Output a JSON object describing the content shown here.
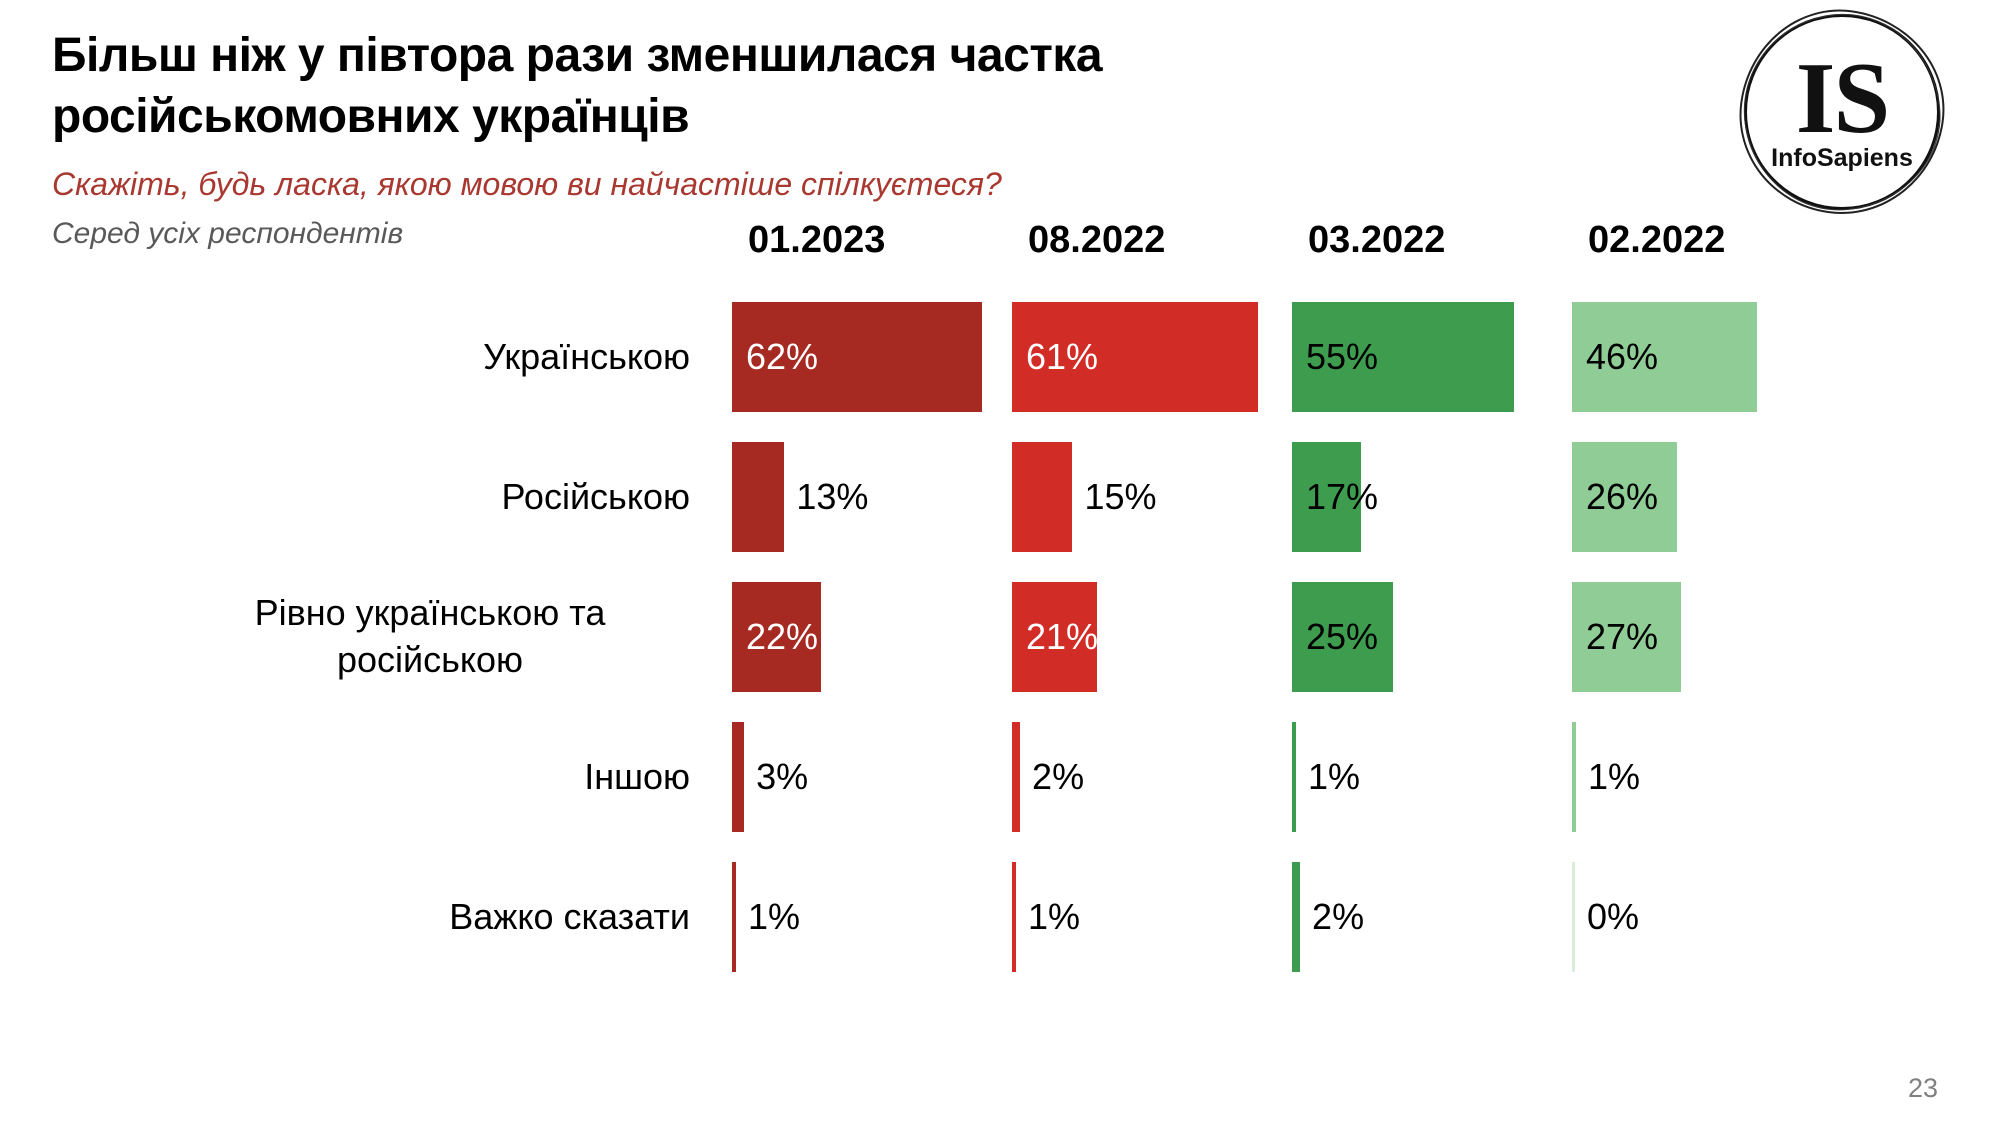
{
  "page": {
    "title_line1": "Більш ніж у півтора рази зменшилася частка",
    "title_line2": "російськомовних українців",
    "question": "Скажіть, будь ласка, якою мовою ви найчастіше спілкуєтеся?",
    "base": "Серед усіх респондентів",
    "page_number": "23"
  },
  "logo": {
    "initials": "IS",
    "name": "InfoSapiens"
  },
  "colors": {
    "question": "#A93830",
    "muted": "#595959",
    "page_number": "#808080"
  },
  "chart_data": {
    "type": "bar",
    "orientation": "horizontal",
    "value_suffix": "%",
    "axis": {
      "max_value": 62,
      "gridlines": false,
      "value_labels": "on_bars"
    },
    "columns": [
      {
        "label": "01.2023",
        "color": "#A62A21",
        "inside_text_color": "#ffffff"
      },
      {
        "label": "08.2022",
        "color": "#D22C27",
        "inside_text_color": "#ffffff"
      },
      {
        "label": "03.2022",
        "color": "#3E9C4F",
        "inside_text_color": "#000000"
      },
      {
        "label": "02.2022",
        "color": "#8FCC96",
        "inside_text_color": "#000000"
      }
    ],
    "categories": [
      "Українською",
      "Російською",
      "Рівно українською та російською",
      "Іншою",
      "Важко сказати"
    ],
    "series": [
      {
        "name": "01.2023",
        "values": [
          62,
          13,
          22,
          3,
          1
        ]
      },
      {
        "name": "08.2022",
        "values": [
          61,
          15,
          21,
          2,
          1
        ]
      },
      {
        "name": "03.2022",
        "values": [
          55,
          17,
          25,
          1,
          2
        ]
      },
      {
        "name": "02.2022",
        "values": [
          46,
          26,
          27,
          1,
          0
        ]
      }
    ]
  }
}
